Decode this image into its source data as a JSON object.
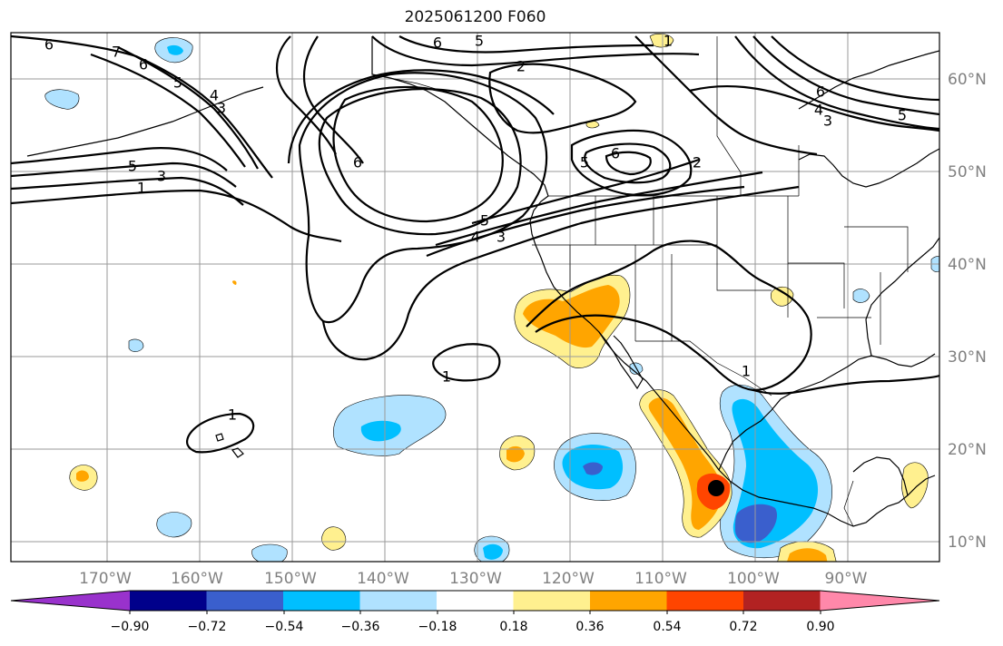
{
  "title": "2025061200 F060",
  "map": {
    "lon_labels": [
      "170°W",
      "160°W",
      "150°W",
      "140°W",
      "130°W",
      "120°W",
      "110°W",
      "100°W",
      "90°W"
    ],
    "lat_labels": [
      "60°N",
      "50°N",
      "40°N",
      "30°N",
      "20°N",
      "10°N"
    ],
    "contour_labels": [
      "6",
      "7",
      "6",
      "5",
      "4",
      "3",
      "1",
      "5",
      "3",
      "6",
      "5",
      "4",
      "3",
      "6",
      "5",
      "2",
      "5",
      "6",
      "2",
      "1",
      "6",
      "4",
      "3",
      "5",
      "1",
      "1",
      "1"
    ]
  },
  "colorbar": {
    "ticks": [
      "−0.90",
      "−0.72",
      "−0.54",
      "−0.36",
      "−0.18",
      "0.18",
      "0.36",
      "0.54",
      "0.72",
      "0.90"
    ],
    "colors": [
      "#9932cc",
      "#00008b",
      "#3a5fcd",
      "#00bfff",
      "#b0e2ff",
      "#ffffff",
      "#fff08f",
      "#ffa500",
      "#ff4500",
      "#b22222",
      "#ff88aa"
    ]
  }
}
